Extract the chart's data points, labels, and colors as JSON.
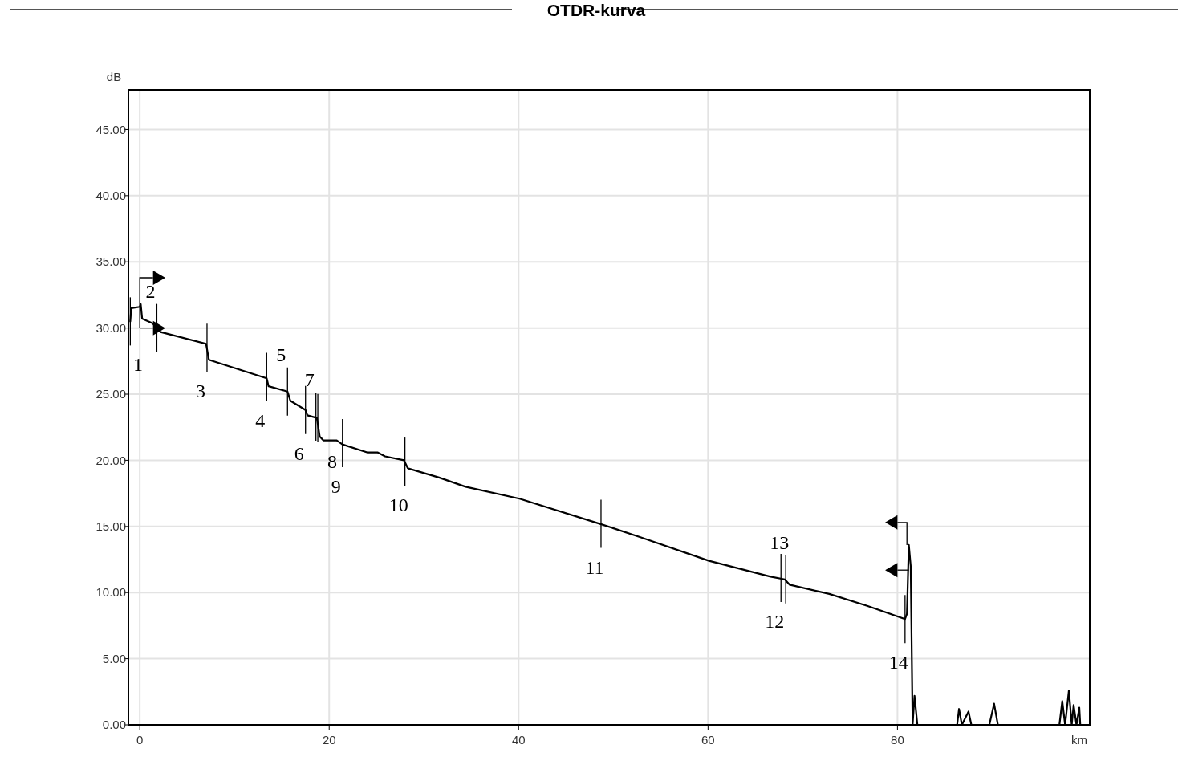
{
  "chart_data": {
    "type": "line",
    "title": "OTDR-kurva",
    "xlabel": "km",
    "ylabel": "dB",
    "xlim": [
      -1.2,
      100.3
    ],
    "ylim": [
      0,
      48
    ],
    "xticks": [
      0,
      20,
      40,
      60,
      80
    ],
    "yticks": [
      {
        "value": 0,
        "label": "0.00"
      },
      {
        "value": 5,
        "label": "5.00"
      },
      {
        "value": 10,
        "label": "10.00"
      },
      {
        "value": 15,
        "label": "15.00"
      },
      {
        "value": 20,
        "label": "20.00"
      },
      {
        "value": 25,
        "label": "25.00"
      },
      {
        "value": 30,
        "label": "30.00"
      },
      {
        "value": 35,
        "label": "35.00"
      },
      {
        "value": 40,
        "label": "40.00"
      },
      {
        "value": 45,
        "label": "45.00"
      }
    ],
    "grid": true,
    "marker": "none",
    "line_style": "solid",
    "series": [
      {
        "color": "#000000",
        "x": [
          -1.0,
          -0.9,
          0,
          0.1,
          0.25,
          1.35,
          2.2,
          7.0,
          7.3,
          13.4,
          13.6,
          15.6,
          15.9,
          17.5,
          17.7,
          18.7,
          19.0,
          19.4,
          20.8,
          21.4,
          24.0,
          25.1,
          25.9,
          27.9,
          28.3,
          31.6,
          34.4,
          40.1,
          48.8,
          52.8,
          60.1,
          66.6,
          68.1,
          68.6,
          72.8,
          76.8,
          80.8,
          81.0,
          81.2,
          81.4,
          81.6,
          81.8,
          82.1,
          86.3,
          86.5,
          86.8,
          87.5,
          87.8,
          89.7,
          90.2,
          90.6,
          97.1,
          97.4,
          97.7,
          98.1,
          98.4,
          98.6,
          98.9,
          99.2,
          99.3
        ],
        "values": [
          30.5,
          31.5,
          31.6,
          31.8,
          30.7,
          30.35,
          29.7,
          28.8,
          27.6,
          26.2,
          25.6,
          25.2,
          24.5,
          23.8,
          23.4,
          23.2,
          21.8,
          21.5,
          21.5,
          21.2,
          20.6,
          20.6,
          20.3,
          20.0,
          19.4,
          18.7,
          18.0,
          17.1,
          15.15,
          14.2,
          12.4,
          11.2,
          11.0,
          10.6,
          9.9,
          9.0,
          8.0,
          8.4,
          13.6,
          12.0,
          0,
          2.2,
          0,
          0,
          1.2,
          0,
          1.0,
          0,
          0,
          1.6,
          0,
          0,
          1.8,
          0,
          2.6,
          0,
          1.5,
          0,
          1.3,
          0
        ]
      }
    ],
    "annotations": [
      {
        "text": "1",
        "x": -1.0,
        "y": 30.5
      },
      {
        "text": "2",
        "x": 1.8,
        "y": 30.0
      },
      {
        "text": "3",
        "x": 7.1,
        "y": 28.5
      },
      {
        "text": "4",
        "x": 13.4,
        "y": 26.3
      },
      {
        "text": "5",
        "x": 15.6,
        "y": 25.2
      },
      {
        "text": "6",
        "x": 17.5,
        "y": 23.8
      },
      {
        "text": "7",
        "x": 18.6,
        "y": 23.3
      },
      {
        "text": "8",
        "x": 18.8,
        "y": 23.2
      },
      {
        "text": "9",
        "x": 21.4,
        "y": 21.3
      },
      {
        "text": "10",
        "x": 28.0,
        "y": 19.9
      },
      {
        "text": "11",
        "x": 48.7,
        "y": 15.2
      },
      {
        "text": "12",
        "x": 67.7,
        "y": 11.1
      },
      {
        "text": "13",
        "x": 68.2,
        "y": 11.0
      },
      {
        "text": "14",
        "x": 80.8,
        "y": 8.0
      }
    ]
  }
}
